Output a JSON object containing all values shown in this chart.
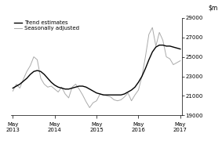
{
  "title": "",
  "ylim": [
    19000,
    29000
  ],
  "yticks": [
    19000,
    21000,
    23000,
    25000,
    27000,
    29000
  ],
  "xtick_labels": [
    "May\n2013",
    "May\n2014",
    "May\n2015",
    "May\n2016",
    "May\n2017"
  ],
  "trend_color": "#000000",
  "seasonal_color": "#aaaaaa",
  "legend_entries": [
    "Trend estimates",
    "Seasonally adjusted"
  ],
  "background_color": "#ffffff",
  "trend_x": [
    0,
    1,
    2,
    3,
    4,
    5,
    6,
    7,
    8,
    9,
    10,
    11,
    12,
    13,
    14,
    15,
    16,
    17,
    18,
    19,
    20,
    21,
    22,
    23,
    24,
    25,
    26,
    27,
    28,
    29,
    30,
    31,
    32,
    33,
    34,
    35,
    36,
    37,
    38,
    39,
    40,
    41,
    42,
    43,
    44,
    45,
    46,
    47,
    48
  ],
  "trend_y": [
    21800,
    22000,
    22200,
    22500,
    22800,
    23200,
    23500,
    23600,
    23500,
    23200,
    22800,
    22400,
    22100,
    21900,
    21800,
    21700,
    21700,
    21800,
    21900,
    22000,
    22000,
    21900,
    21700,
    21500,
    21300,
    21200,
    21100,
    21100,
    21100,
    21100,
    21100,
    21100,
    21200,
    21400,
    21600,
    21900,
    22400,
    23000,
    23800,
    24700,
    25500,
    26000,
    26200,
    26200,
    26100,
    26100,
    26000,
    25900,
    25800
  ],
  "seasonal_x": [
    0,
    1,
    2,
    3,
    4,
    5,
    6,
    7,
    8,
    9,
    10,
    11,
    12,
    13,
    14,
    15,
    16,
    17,
    18,
    19,
    20,
    21,
    22,
    23,
    24,
    25,
    26,
    27,
    28,
    29,
    30,
    31,
    32,
    33,
    34,
    35,
    36,
    37,
    38,
    39,
    40,
    41,
    42,
    43,
    44,
    45,
    46,
    47,
    48
  ],
  "seasonal_y": [
    21500,
    22200,
    21800,
    22700,
    23500,
    24100,
    25000,
    24700,
    22800,
    22200,
    21900,
    22000,
    21700,
    21400,
    21900,
    21200,
    20800,
    21900,
    22200,
    21700,
    21100,
    20400,
    19800,
    20300,
    20500,
    21200,
    21100,
    21000,
    20900,
    20600,
    20500,
    20600,
    20900,
    21300,
    20500,
    21100,
    21600,
    23000,
    25000,
    27300,
    28000,
    26100,
    27500,
    26700,
    25000,
    24800,
    24200,
    24400,
    24600
  ]
}
